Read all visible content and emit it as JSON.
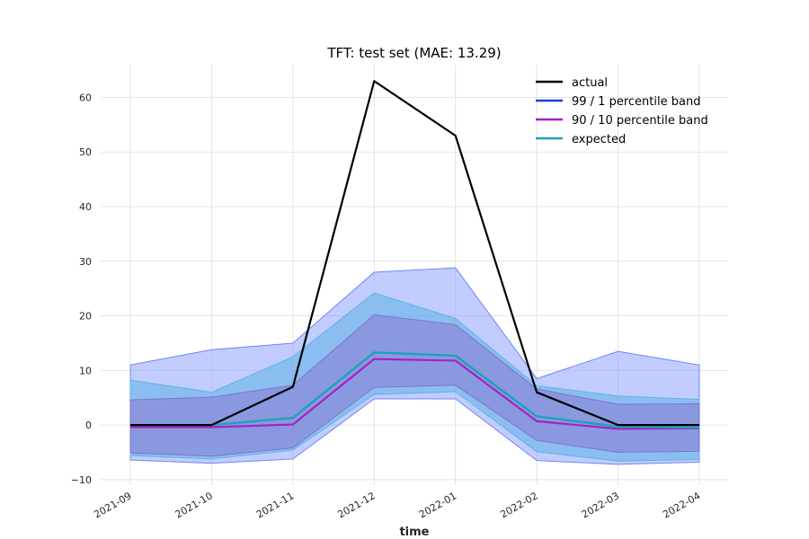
{
  "chart_data": {
    "type": "line",
    "title": "TFT: test set (MAE: 13.29)",
    "xlabel": "time",
    "ylabel": "",
    "categories": [
      "2021-09",
      "2021-10",
      "2021-11",
      "2021-12",
      "2022-01",
      "2022-02",
      "2022-03",
      "2022-04"
    ],
    "yticks": [
      -10,
      0,
      10,
      20,
      30,
      40,
      50,
      60
    ],
    "yticklabels": [
      "−10",
      "0",
      "10",
      "20",
      "30",
      "40",
      "50",
      "60"
    ],
    "ylim": [
      -11,
      66
    ],
    "grid": true,
    "legend_position": "top-right",
    "series": [
      {
        "name": "actual",
        "color": "#000000",
        "values": [
          0,
          0,
          7,
          63,
          53,
          6,
          0,
          0
        ]
      },
      {
        "name": "99 / 1 percentile band",
        "color": "#1f3be0",
        "upper": [
          11,
          13.8,
          15,
          28,
          28.8,
          8.5,
          13.5,
          11
        ],
        "lower": [
          -6.4,
          -7,
          -6.2,
          4.8,
          4.8,
          -6.5,
          -7.2,
          -6.8
        ],
        "upper_color": "#8fa3ff",
        "lower_color": "#8fa3ff"
      },
      {
        "name": "90 / 10 percentile band",
        "color": "#a621c4",
        "upper": [
          4.6,
          5.1,
          7.3,
          20.2,
          18.4,
          6.6,
          3.8,
          3.9
        ],
        "lower": [
          -5.1,
          -5.7,
          -4.2,
          6.9,
          7.3,
          -2.8,
          -5,
          -4.8
        ],
        "median": [
          -0.4,
          -0.4,
          0.1,
          12.1,
          11.8,
          0.7,
          -0.7,
          -0.6
        ]
      },
      {
        "name": "expected",
        "color": "#1ba3b8",
        "values": [
          0,
          0,
          1.3,
          13.3,
          12.7,
          1.6,
          -0.3,
          -0.5
        ],
        "upper": [
          8.2,
          6,
          12.5,
          24.2,
          19.5,
          7.2,
          5.3,
          4.7
        ],
        "lower": [
          -5.6,
          -6.2,
          -4.6,
          5.6,
          6.1,
          -4.9,
          -6.6,
          -6.3
        ]
      }
    ],
    "legend": [
      "actual",
      "99 / 1 percentile band",
      "90 / 10 percentile band",
      "expected"
    ]
  }
}
